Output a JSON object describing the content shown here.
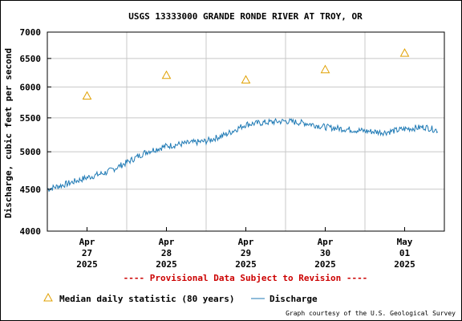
{
  "chart_data": {
    "type": "line",
    "title": "USGS 13333000 GRANDE RONDE RIVER AT TROY, OR",
    "ylabel": "Discharge, cubic feet per second",
    "xlabel": "",
    "ylim": [
      4000,
      7000
    ],
    "yscale": "log",
    "y_ticks": [
      4000,
      4500,
      5000,
      5500,
      6000,
      6500,
      7000
    ],
    "x_range_days": [
      0,
      5
    ],
    "x_ticks": [
      {
        "day": 0.5,
        "lines": [
          "Apr",
          "27",
          "2025"
        ]
      },
      {
        "day": 1.5,
        "lines": [
          "Apr",
          "28",
          "2025"
        ]
      },
      {
        "day": 2.5,
        "lines": [
          "Apr",
          "29",
          "2025"
        ]
      },
      {
        "day": 3.5,
        "lines": [
          "Apr",
          "30",
          "2025"
        ]
      },
      {
        "day": 4.5,
        "lines": [
          "May",
          "01",
          "2025"
        ]
      }
    ],
    "grid": true,
    "series": [
      {
        "name": "Discharge",
        "color": "#1f7ab5",
        "style": "line",
        "x_days": [
          0.0,
          0.25,
          0.5,
          0.75,
          1.0,
          1.25,
          1.5,
          1.75,
          2.0,
          2.25,
          2.5,
          2.75,
          3.0,
          3.25,
          3.5,
          3.75,
          4.0,
          4.25,
          4.5,
          4.75,
          4.92
        ],
        "values": [
          4500,
          4570,
          4650,
          4720,
          4850,
          5000,
          5080,
          5120,
          5150,
          5250,
          5400,
          5430,
          5450,
          5420,
          5360,
          5330,
          5300,
          5280,
          5330,
          5360,
          5310
        ]
      },
      {
        "name": "Median daily statistic (80 years)",
        "color": "#e0a000",
        "style": "triangle",
        "x_days": [
          0.5,
          1.5,
          2.5,
          3.5,
          4.5
        ],
        "values": [
          5850,
          6200,
          6120,
          6300,
          6600
        ]
      }
    ]
  },
  "provisional_text": "---- Provisional Data Subject to Revision ----",
  "credit": "Graph courtesy of the U.S. Geological Survey"
}
